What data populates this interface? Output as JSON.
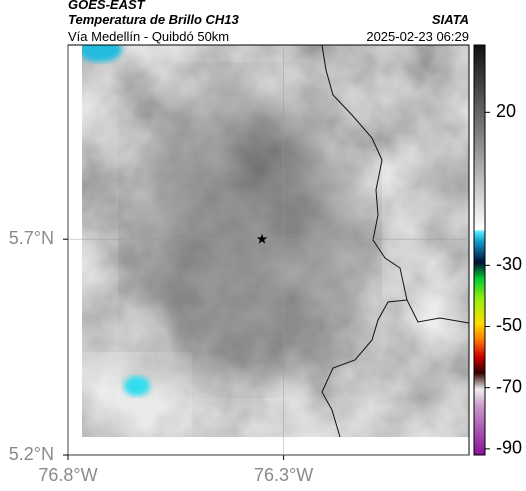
{
  "header": {
    "title": "GOES-EAST",
    "subtitle": "Temperatura de Brillo CH13",
    "route": "Vía Medellín - Quibdó 50km",
    "source": "SIATA",
    "datetime": "2025-02-23 06:29"
  },
  "map": {
    "xlim": [
      -76.8,
      -75.87
    ],
    "ylim": [
      5.2,
      6.15
    ],
    "xticks": [
      {
        "value": -76.8,
        "label": "76.8°W"
      },
      {
        "value": -76.3,
        "label": "76.3°W"
      }
    ],
    "yticks": [
      {
        "value": 5.7,
        "label": "5.7°N"
      },
      {
        "value": 5.2,
        "label": "5.2°N"
      }
    ],
    "marker": {
      "lon": -76.35,
      "lat": 5.7
    }
  },
  "colorbar": {
    "clim": [
      -92,
      42
    ],
    "ticks": [
      20,
      -30,
      -50,
      -70,
      -90
    ]
  }
}
